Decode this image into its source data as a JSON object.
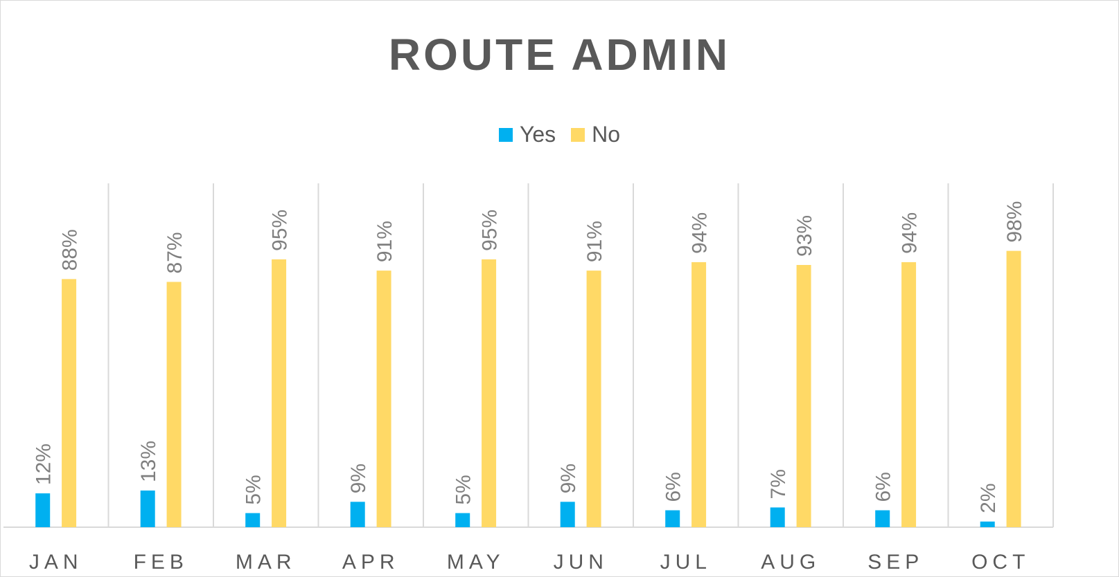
{
  "chart_data": {
    "type": "bar",
    "title": "ROUTE ADMIN",
    "categories": [
      "JAN",
      "FEB",
      "MAR",
      "APR",
      "MAY",
      "JUN",
      "JUL",
      "AUG",
      "SEP",
      "OCT"
    ],
    "series": [
      {
        "name": "Yes",
        "color": "#00b0f0",
        "values": [
          12,
          13,
          5,
          9,
          5,
          9,
          6,
          7,
          6,
          2
        ],
        "labels": [
          "12%",
          "13%",
          "5%",
          "9%",
          "5%",
          "9%",
          "6%",
          "7%",
          "6%",
          "2%"
        ]
      },
      {
        "name": "No",
        "color": "#ffd966",
        "values": [
          88,
          87,
          95,
          91,
          95,
          91,
          94,
          93,
          94,
          98
        ],
        "labels": [
          "88%",
          "87%",
          "95%",
          "91%",
          "95%",
          "91%",
          "94%",
          "93%",
          "94%",
          "98%"
        ]
      }
    ],
    "xlabel": "",
    "ylabel": "",
    "ylim": [
      0,
      100
    ],
    "grid": "vertical category separators",
    "legend": "top-center",
    "data_labels": "rotated vertical above bars"
  }
}
